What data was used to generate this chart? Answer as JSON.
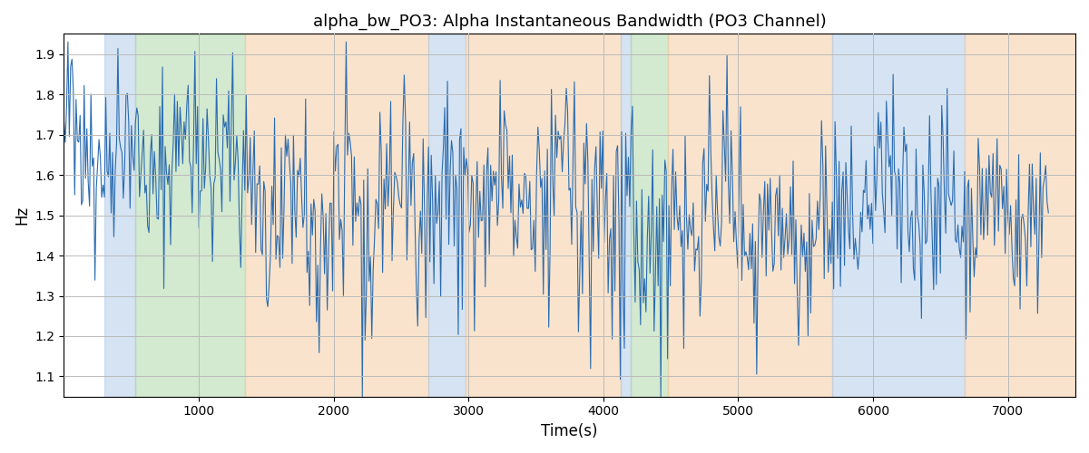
{
  "title": "alpha_bw_PO3: Alpha Instantaneous Bandwidth (PO3 Channel)",
  "xlabel": "Time(s)",
  "ylabel": "Hz",
  "xlim": [
    0,
    7500
  ],
  "ylim": [
    1.05,
    1.95
  ],
  "yticks": [
    1.1,
    1.2,
    1.3,
    1.4,
    1.5,
    1.6,
    1.7,
    1.8,
    1.9
  ],
  "xticks": [
    1000,
    2000,
    3000,
    4000,
    5000,
    6000,
    7000
  ],
  "line_color": "#2b6cb0",
  "line_width": 0.8,
  "grid_color": "#bbbbbb",
  "seed": 42,
  "n_points": 730,
  "colored_bands": [
    {
      "start": 300,
      "end": 530,
      "color": "#adc8e8",
      "alpha": 0.5
    },
    {
      "start": 530,
      "end": 1340,
      "color": "#a8d5a2",
      "alpha": 0.5
    },
    {
      "start": 1340,
      "end": 2700,
      "color": "#f5c99a",
      "alpha": 0.5
    },
    {
      "start": 2700,
      "end": 2980,
      "color": "#adc8e8",
      "alpha": 0.5
    },
    {
      "start": 2980,
      "end": 4130,
      "color": "#f5c99a",
      "alpha": 0.5
    },
    {
      "start": 4130,
      "end": 4200,
      "color": "#adc8e8",
      "alpha": 0.5
    },
    {
      "start": 4200,
      "end": 4480,
      "color": "#a8d5a2",
      "alpha": 0.5
    },
    {
      "start": 4480,
      "end": 5700,
      "color": "#f5c99a",
      "alpha": 0.5
    },
    {
      "start": 5700,
      "end": 6680,
      "color": "#adc8e8",
      "alpha": 0.5
    },
    {
      "start": 6680,
      "end": 7500,
      "color": "#f5c99a",
      "alpha": 0.5
    }
  ]
}
